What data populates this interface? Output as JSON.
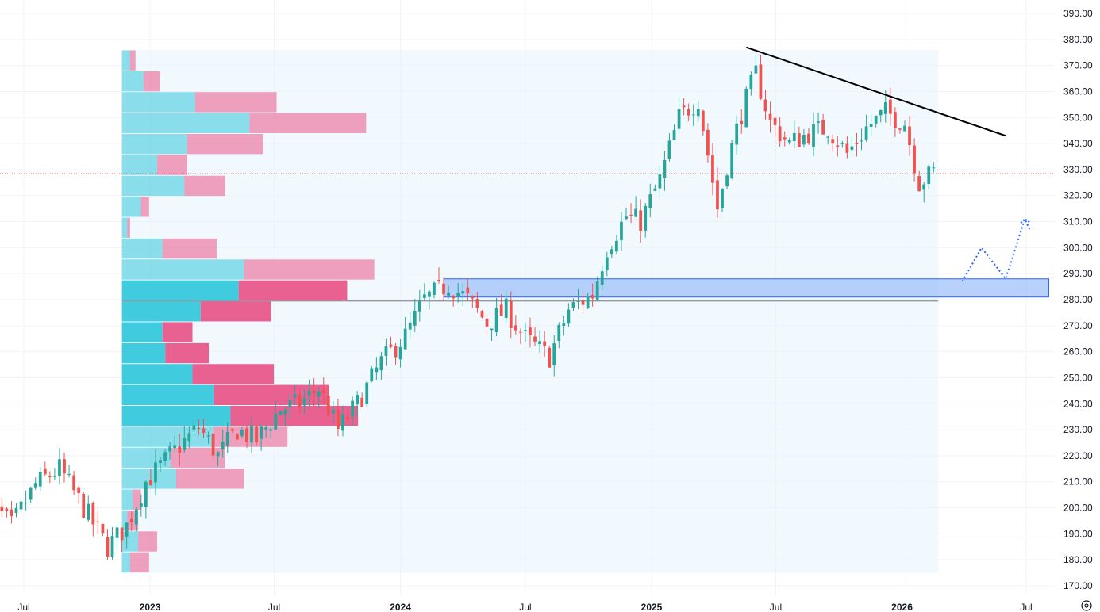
{
  "colors": {
    "up": "#26a69a",
    "down": "#ef5350",
    "grid": "#f0f3fa",
    "text": "#131722",
    "profile_bg": "#e3f2fd",
    "vol_up": "#22c3d8",
    "vol_down": "#e8467c",
    "zone_fill": "#90b8f8",
    "zone_stroke": "#2962ff",
    "trendline": "#000000",
    "projection": "#2962ff",
    "price_line": "#787b86",
    "poc_line": "#9598a1"
  },
  "axis": {
    "y_ticks": [
      "170.00",
      "180.00",
      "190.00",
      "200.00",
      "210.00",
      "220.00",
      "230.00",
      "240.00",
      "250.00",
      "260.00",
      "270.00",
      "280.00",
      "290.00",
      "300.00",
      "310.00",
      "320.00",
      "330.00",
      "340.00",
      "350.00",
      "360.00",
      "370.00",
      "380.00",
      "390.00"
    ],
    "time_labels": [
      {
        "label": "Jul",
        "date": "2022-07-01",
        "bold": false
      },
      {
        "label": "2023",
        "date": "2023-01-01",
        "bold": true
      },
      {
        "label": "Jul",
        "date": "2023-07-01",
        "bold": false
      },
      {
        "label": "2024",
        "date": "2024-01-01",
        "bold": true
      },
      {
        "label": "Jul",
        "date": "2024-07-01",
        "bold": false
      },
      {
        "label": "2025",
        "date": "2025-01-01",
        "bold": true
      },
      {
        "label": "Jul",
        "date": "2025-07-01",
        "bold": false
      },
      {
        "label": "2026",
        "date": "2026-01-01",
        "bold": true
      },
      {
        "label": "Jul",
        "date": "2026-07-01",
        "bold": false
      }
    ],
    "settings_icon": "gear-icon"
  },
  "chart_data": {
    "type": "candlestick",
    "interval": "weekly",
    "ylim": [
      167,
      392
    ],
    "xlim": [
      "2022-05-02",
      "2026-08-10"
    ],
    "last_price": 328.5,
    "anchors": [
      [
        "2022-05-02",
        205
      ],
      [
        "2022-06-13",
        193
      ],
      [
        "2022-07-18",
        209
      ],
      [
        "2022-08-22",
        215
      ],
      [
        "2022-09-26",
        200
      ],
      [
        "2022-10-31",
        185
      ],
      [
        "2022-11-28",
        193
      ],
      [
        "2022-12-26",
        210
      ],
      [
        "2023-02-06",
        222
      ],
      [
        "2023-03-13",
        231
      ],
      [
        "2023-04-10",
        220
      ],
      [
        "2023-05-08",
        230
      ],
      [
        "2023-06-05",
        226
      ],
      [
        "2023-07-10",
        238
      ],
      [
        "2023-08-07",
        240
      ],
      [
        "2023-09-04",
        246
      ],
      [
        "2023-10-02",
        230
      ],
      [
        "2023-10-30",
        240
      ],
      [
        "2023-12-04",
        256
      ],
      [
        "2024-01-08",
        266
      ],
      [
        "2024-02-05",
        280
      ],
      [
        "2024-03-11",
        286
      ],
      [
        "2024-04-08",
        280
      ],
      [
        "2024-05-06",
        271
      ],
      [
        "2024-06-03",
        276
      ],
      [
        "2024-07-01",
        265
      ],
      [
        "2024-08-05",
        258
      ],
      [
        "2024-09-02",
        276
      ],
      [
        "2024-10-07",
        282
      ],
      [
        "2024-10-28",
        300
      ],
      [
        "2024-11-25",
        312
      ],
      [
        "2024-12-16",
        310
      ],
      [
        "2025-01-13",
        326
      ],
      [
        "2025-02-10",
        350
      ],
      [
        "2025-03-10",
        357
      ],
      [
        "2025-04-07",
        315
      ],
      [
        "2025-04-21",
        332
      ],
      [
        "2025-05-12",
        352
      ],
      [
        "2025-06-02",
        367
      ],
      [
        "2025-06-23",
        348
      ],
      [
        "2025-07-21",
        340
      ],
      [
        "2025-08-18",
        344
      ],
      [
        "2025-09-15",
        346
      ],
      [
        "2025-10-13",
        336
      ],
      [
        "2025-11-10",
        346
      ],
      [
        "2025-12-08",
        352
      ],
      [
        "2026-01-05",
        348
      ],
      [
        "2026-01-26",
        325
      ],
      [
        "2026-02-16",
        329
      ]
    ],
    "volume_profile": {
      "range_start": "2022-11-21",
      "range_end": "2026-02-23",
      "low": 175,
      "high": 376,
      "rows": [
        {
          "up": 3,
          "down": 7
        },
        {
          "up": 6,
          "down": 7
        },
        {
          "up": 2,
          "down": 4
        },
        {
          "up": 4,
          "down": 3
        },
        {
          "up": 20,
          "down": 25
        },
        {
          "up": 18,
          "down": 20
        },
        {
          "up": 34,
          "down": 27
        },
        {
          "up": 40,
          "down": 47
        },
        {
          "up": 34,
          "down": 42
        },
        {
          "up": 26,
          "down": 30
        },
        {
          "up": 16,
          "down": 16
        },
        {
          "up": 15,
          "down": 11
        },
        {
          "up": 29,
          "down": 26
        },
        {
          "up": 43,
          "down": 40
        },
        {
          "up": 45,
          "down": 48
        },
        {
          "up": 15,
          "down": 20
        },
        {
          "up": 2,
          "down": 1
        },
        {
          "up": 7,
          "down": 3
        },
        {
          "up": 23,
          "down": 15
        },
        {
          "up": 13,
          "down": 11
        },
        {
          "up": 24,
          "down": 28
        },
        {
          "up": 47,
          "down": 43
        },
        {
          "up": 27,
          "down": 30
        },
        {
          "up": 8,
          "down": 6
        },
        {
          "up": 3,
          "down": 2
        }
      ],
      "poc_price": 279.5
    },
    "support_zone": {
      "from": "2024-03-04",
      "to": "2026-08-03",
      "low": 281,
      "high": 288
    },
    "trendline": {
      "from": [
        "2025-05-19",
        377
      ],
      "to": [
        "2026-06-01",
        343
      ]
    },
    "projection": [
      [
        "2026-03-30",
        287
      ],
      [
        "2026-04-27",
        300
      ],
      [
        "2026-06-01",
        288
      ],
      [
        "2026-06-29",
        311
      ],
      [
        "2026-07-06",
        307
      ]
    ]
  }
}
